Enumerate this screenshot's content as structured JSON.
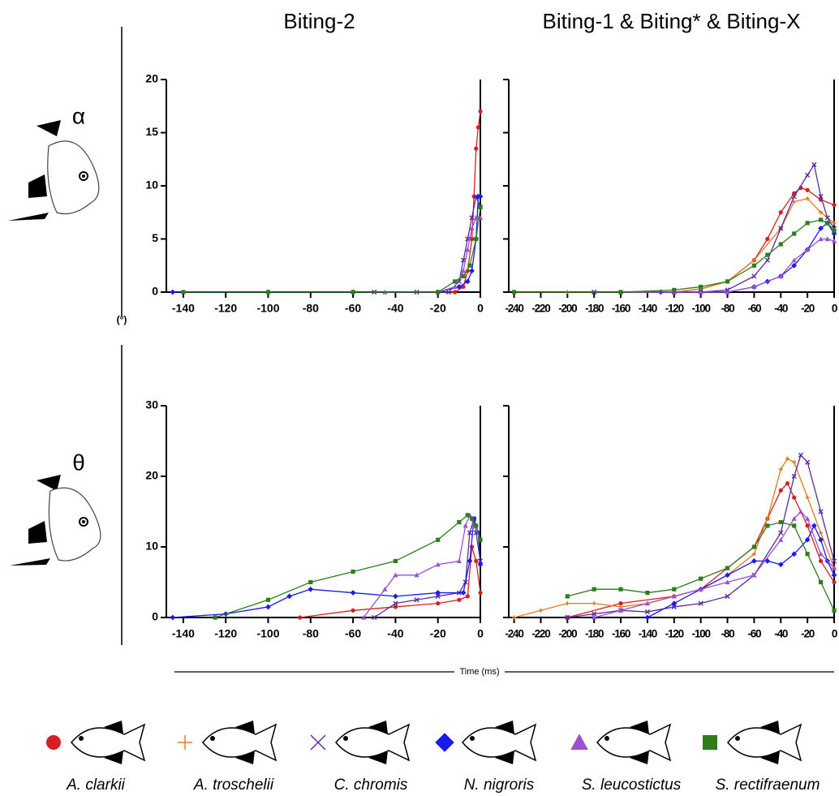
{
  "row_labels": [
    "α",
    "θ"
  ],
  "y_unit_label": "(°)",
  "x_axis_label": "Time (ms)",
  "chart_data": [
    {
      "type": "line",
      "title": "Biting-2",
      "xlim": [
        -148,
        0
      ],
      "ylim": [
        0,
        20
      ],
      "xticks": [
        -140,
        -120,
        -100,
        -80,
        -60,
        -40,
        -20,
        0
      ],
      "yticks": [
        0,
        5,
        10,
        15,
        20
      ],
      "show_ytick_labels": true,
      "series": [
        {
          "name": "A. clarkii",
          "color": "#d42020",
          "marker": "circle",
          "x": [
            -20,
            -12,
            -8,
            -6,
            -4,
            -3,
            -2,
            -1,
            0
          ],
          "values": [
            0,
            0,
            0.5,
            2,
            5,
            9,
            13.5,
            15.5,
            17
          ]
        },
        {
          "name": "C. chromis",
          "color": "#5a2a9e",
          "marker": "x",
          "x": [
            -50,
            -30,
            -15,
            -10,
            -8,
            -6,
            -4,
            -2,
            0
          ],
          "values": [
            0,
            0,
            0,
            1,
            3,
            5,
            7,
            9,
            8
          ]
        },
        {
          "name": "N. nigroris",
          "color": "#1a1aee",
          "marker": "diamond",
          "x": [
            -145,
            -100,
            -60,
            -20,
            -10,
            -6,
            -4,
            -2,
            -1,
            0
          ],
          "values": [
            0,
            0,
            0,
            0,
            0.5,
            1,
            2,
            5,
            9,
            9
          ]
        },
        {
          "name": "S. leucostictus",
          "color": "#9a50d0",
          "marker": "triangle",
          "x": [
            -45,
            -20,
            -12,
            -8,
            -6,
            -4,
            -2,
            0
          ],
          "values": [
            0,
            0,
            0.5,
            2,
            4,
            6,
            7,
            7
          ]
        },
        {
          "name": "S. rectifraenum",
          "color": "#2e7d1a",
          "marker": "square",
          "x": [
            -140,
            -100,
            -60,
            -20,
            -12,
            -8,
            -5,
            -2,
            0
          ],
          "values": [
            0,
            0,
            0,
            0,
            1,
            1.5,
            2.5,
            5,
            8
          ]
        }
      ]
    },
    {
      "type": "line",
      "title": "Biting-1 & Biting* & Biting-X",
      "xlim": [
        -244,
        0
      ],
      "ylim": [
        0,
        20
      ],
      "xticks": [
        -240,
        -220,
        -200,
        -180,
        -160,
        -140,
        -120,
        -100,
        -80,
        -60,
        -40,
        -20,
        0
      ],
      "yticks": [
        0,
        5,
        10,
        15,
        20
      ],
      "show_ytick_labels": false,
      "series": [
        {
          "name": "A. clarkii",
          "color": "#d42020",
          "marker": "circle",
          "x": [
            -160,
            -120,
            -100,
            -80,
            -60,
            -50,
            -40,
            -30,
            -25,
            -20,
            -10,
            0
          ],
          "values": [
            0,
            0,
            0.3,
            1,
            3,
            5,
            7.5,
            9.3,
            9.8,
            9.6,
            8.7,
            8.2
          ]
        },
        {
          "name": "A. troschelii",
          "color": "#e07a20",
          "marker": "plus",
          "x": [
            -240,
            -200,
            -160,
            -120,
            -100,
            -80,
            -60,
            -40,
            -30,
            -20,
            -10,
            0
          ],
          "values": [
            0,
            0,
            0,
            0,
            0.3,
            1,
            3,
            6,
            8.5,
            8.8,
            7.5,
            6.5
          ]
        },
        {
          "name": "C. chromis",
          "color": "#5a2a9e",
          "marker": "x",
          "x": [
            -180,
            -120,
            -100,
            -80,
            -60,
            -50,
            -40,
            -30,
            -20,
            -15,
            -10,
            -5,
            0
          ],
          "values": [
            0,
            0,
            0,
            0.2,
            1.5,
            3,
            6,
            9,
            11,
            12,
            9,
            7,
            6
          ]
        },
        {
          "name": "N. nigroris",
          "color": "#1a1aee",
          "marker": "diamond",
          "x": [
            -130,
            -100,
            -80,
            -60,
            -50,
            -40,
            -30,
            -20,
            -10,
            -5,
            0
          ],
          "values": [
            0,
            0,
            0,
            0.5,
            1,
            1.5,
            2.5,
            4,
            6,
            6.5,
            5.5
          ]
        },
        {
          "name": "S. leucostictus",
          "color": "#9a50d0",
          "marker": "triangle",
          "x": [
            -160,
            -100,
            -80,
            -60,
            -40,
            -30,
            -20,
            -10,
            -5,
            0
          ],
          "values": [
            0,
            0,
            0,
            0.5,
            1.5,
            3,
            4,
            5,
            5,
            4.8
          ]
        },
        {
          "name": "S. rectifraenum",
          "color": "#2e7d1a",
          "marker": "square",
          "x": [
            -240,
            -160,
            -120,
            -100,
            -80,
            -60,
            -50,
            -40,
            -30,
            -20,
            -10,
            -5,
            0
          ],
          "values": [
            0,
            0,
            0.2,
            0.5,
            1,
            2.5,
            3.5,
            4.5,
            5.5,
            6.5,
            6.8,
            6.5,
            5.8
          ]
        }
      ]
    },
    {
      "type": "line",
      "xlim": [
        -148,
        0
      ],
      "ylim": [
        0,
        30
      ],
      "xticks": [
        -140,
        -120,
        -100,
        -80,
        -60,
        -40,
        -20,
        0
      ],
      "yticks": [
        0,
        10,
        20,
        30
      ],
      "show_ytick_labels": true,
      "series": [
        {
          "name": "A. clarkii",
          "color": "#d42020",
          "marker": "circle",
          "x": [
            -85,
            -60,
            -40,
            -20,
            -10,
            -6,
            -4,
            -2,
            0
          ],
          "values": [
            0,
            1,
            1.5,
            2,
            2.5,
            3,
            10,
            8,
            3.5
          ]
        },
        {
          "name": "C. chromis",
          "color": "#5a2a9e",
          "marker": "x",
          "x": [
            -50,
            -40,
            -30,
            -20,
            -10,
            -7,
            -5,
            -3,
            -2,
            0
          ],
          "values": [
            0,
            2,
            2.5,
            3,
            3.5,
            5,
            12,
            14,
            12,
            8
          ]
        },
        {
          "name": "N. nigroris",
          "color": "#1a1aee",
          "marker": "diamond",
          "x": [
            -145,
            -120,
            -100,
            -90,
            -80,
            -60,
            -40,
            -20,
            -8,
            -5,
            -3,
            -1,
            0
          ],
          "values": [
            0,
            0.5,
            1.5,
            3,
            4,
            3.5,
            3,
            3.5,
            3.5,
            8,
            14,
            12,
            7.5
          ]
        },
        {
          "name": "S. leucostictus",
          "color": "#9a50d0",
          "marker": "triangle",
          "x": [
            -55,
            -45,
            -40,
            -30,
            -20,
            -10,
            -7,
            -5,
            -3,
            0
          ],
          "values": [
            0,
            4,
            6,
            6,
            7.5,
            8,
            13,
            14.5,
            13,
            11
          ]
        },
        {
          "name": "S. rectifraenum",
          "color": "#2e7d1a",
          "marker": "square",
          "x": [
            -125,
            -100,
            -80,
            -60,
            -40,
            -20,
            -10,
            -6,
            -4,
            -2,
            0
          ],
          "values": [
            0,
            2.5,
            5,
            6.5,
            8,
            11,
            13.5,
            14.5,
            14,
            13,
            11
          ]
        }
      ]
    },
    {
      "type": "line",
      "xlim": [
        -244,
        0
      ],
      "ylim": [
        0,
        30
      ],
      "xticks": [
        -240,
        -220,
        -200,
        -180,
        -160,
        -140,
        -120,
        -100,
        -80,
        -60,
        -40,
        -20,
        0
      ],
      "yticks": [
        0,
        10,
        20,
        30
      ],
      "show_ytick_labels": false,
      "series": [
        {
          "name": "A. clarkii",
          "color": "#d42020",
          "marker": "circle",
          "x": [
            -200,
            -160,
            -120,
            -100,
            -80,
            -60,
            -50,
            -40,
            -35,
            -30,
            -20,
            -10,
            0
          ],
          "values": [
            0,
            2,
            3,
            4,
            7,
            10,
            14,
            18,
            19,
            17,
            13,
            8,
            5
          ]
        },
        {
          "name": "A. troschelii",
          "color": "#e07a20",
          "marker": "plus",
          "x": [
            -240,
            -220,
            -200,
            -180,
            -160,
            -140,
            -120,
            -100,
            -80,
            -60,
            -50,
            -40,
            -35,
            -30,
            -20,
            -10,
            0
          ],
          "values": [
            0,
            1,
            2,
            2,
            1.5,
            2,
            3,
            4,
            6,
            9,
            14,
            21,
            22.5,
            22,
            17,
            12,
            7
          ]
        },
        {
          "name": "C. chromis",
          "color": "#5a2a9e",
          "marker": "x",
          "x": [
            -200,
            -180,
            -160,
            -140,
            -120,
            -100,
            -80,
            -60,
            -40,
            -30,
            -25,
            -20,
            -10,
            0
          ],
          "values": [
            0,
            0.5,
            1,
            0.8,
            1.5,
            2,
            3,
            6,
            12,
            20,
            23,
            22,
            15,
            8
          ]
        },
        {
          "name": "N. nigroris",
          "color": "#1a1aee",
          "marker": "diamond",
          "x": [
            -140,
            -120,
            -100,
            -80,
            -60,
            -50,
            -40,
            -30,
            -20,
            -15,
            -10,
            -5,
            0
          ],
          "values": [
            0,
            2,
            4,
            6,
            8,
            8,
            7.5,
            9,
            11,
            13,
            11,
            8,
            6
          ]
        },
        {
          "name": "S. leucostictus",
          "color": "#9a50d0",
          "marker": "triangle",
          "x": [
            -180,
            -160,
            -140,
            -120,
            -100,
            -80,
            -60,
            -40,
            -30,
            -25,
            -20,
            -10,
            0
          ],
          "values": [
            0,
            1,
            2,
            3,
            4,
            5,
            6,
            11,
            14,
            15,
            14,
            9,
            7
          ]
        },
        {
          "name": "S. rectifraenum",
          "color": "#2e7d1a",
          "marker": "square",
          "x": [
            -200,
            -180,
            -160,
            -140,
            -120,
            -100,
            -80,
            -60,
            -50,
            -40,
            -30,
            -20,
            -10,
            0
          ],
          "values": [
            3,
            4,
            4,
            3.5,
            4,
            5.5,
            7,
            10,
            13,
            13.5,
            13,
            9,
            5,
            1
          ]
        }
      ]
    }
  ]
}
